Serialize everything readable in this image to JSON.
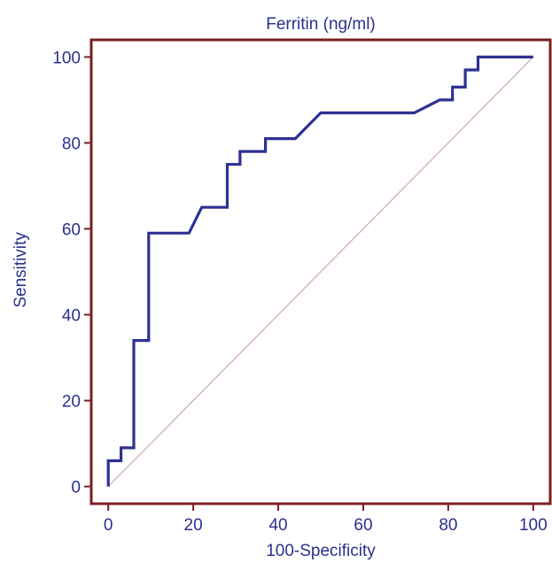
{
  "chart_data": {
    "type": "line",
    "title": "Ferritin (ng/ml)",
    "xlabel": "100-Specificity",
    "ylabel": "Sensitivity",
    "xlim": [
      -4,
      104
    ],
    "ylim": [
      -4,
      104
    ],
    "xticks": [
      "0",
      "20",
      "40",
      "60",
      "80",
      "100"
    ],
    "yticks": [
      "0",
      "20",
      "40",
      "60",
      "80",
      "100"
    ],
    "grid": false,
    "colors": {
      "curve": "#2e3192",
      "diagonal": "#d4b8bc",
      "frame": "#7a1f1f",
      "text": "#2b2f8e"
    },
    "series": [
      {
        "x": [
          0,
          0,
          3,
          3,
          6,
          6,
          9.5,
          9.5,
          19,
          22,
          28,
          28,
          31,
          31,
          37,
          37,
          44,
          50,
          72,
          78,
          81,
          81,
          84,
          84,
          87,
          87,
          100
        ],
        "y": [
          0,
          6,
          6,
          9,
          9,
          34,
          34,
          59,
          59,
          65,
          65,
          75,
          75,
          78,
          78,
          81,
          81,
          87,
          87,
          90,
          90,
          93,
          93,
          97,
          97,
          100,
          100
        ]
      }
    ],
    "reference_line": {
      "x": [
        0,
        100
      ],
      "y": [
        0,
        100
      ]
    }
  }
}
